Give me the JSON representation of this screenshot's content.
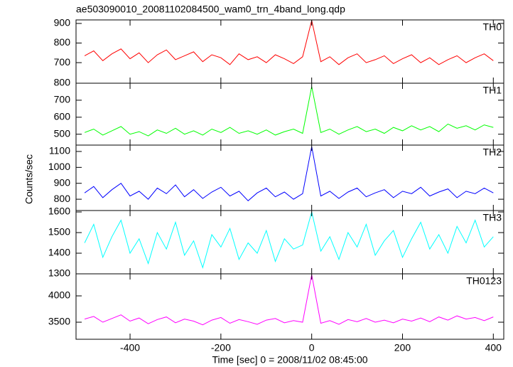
{
  "chart_data": {
    "type": "line",
    "title": "ae503090010_20081102084500_wam0_trn_4band_long.qdp",
    "xlabel": "Time [sec] 0 = 2008/11/02 08:45:00",
    "ylabel": "Counts/sec",
    "x": [
      -500,
      -480,
      -460,
      -440,
      -420,
      -400,
      -380,
      -360,
      -340,
      -320,
      -300,
      -280,
      -260,
      -240,
      -220,
      -200,
      -180,
      -160,
      -140,
      -120,
      -100,
      -80,
      -60,
      -40,
      -20,
      0,
      20,
      40,
      60,
      80,
      100,
      120,
      140,
      160,
      180,
      200,
      220,
      240,
      260,
      280,
      300,
      320,
      340,
      360,
      380,
      400
    ],
    "xlim": [
      -519,
      423
    ],
    "xticks": [
      -400,
      -200,
      0,
      200,
      400
    ],
    "series": [
      {
        "name": "TH0",
        "color": "#ff0000",
        "ylim": [
          595,
          918
        ],
        "yticks": [
          700,
          800,
          900
        ],
        "values": [
          735,
          760,
          710,
          745,
          770,
          720,
          750,
          700,
          740,
          765,
          715,
          735,
          755,
          705,
          740,
          725,
          690,
          745,
          715,
          730,
          700,
          740,
          720,
          695,
          730,
          915,
          705,
          730,
          690,
          725,
          745,
          700,
          715,
          735,
          695,
          720,
          740,
          700,
          725,
          690,
          715,
          735,
          700,
          725,
          745,
          710
        ]
      },
      {
        "name": "TH1",
        "color": "#00ff00",
        "ylim": [
          436,
          800
        ],
        "yticks": [
          500,
          600,
          700,
          800
        ],
        "values": [
          510,
          530,
          495,
          520,
          545,
          500,
          515,
          490,
          525,
          505,
          535,
          500,
          520,
          495,
          530,
          510,
          540,
          505,
          520,
          500,
          525,
          495,
          515,
          530,
          505,
          780,
          510,
          530,
          500,
          525,
          545,
          515,
          530,
          505,
          540,
          520,
          550,
          525,
          545,
          515,
          560,
          535,
          550,
          525,
          555,
          540
        ]
      },
      {
        "name": "TH2",
        "color": "#0000ff",
        "ylim": [
          729,
          1140
        ],
        "yticks": [
          800,
          900,
          1000,
          1100
        ],
        "values": [
          840,
          880,
          810,
          860,
          900,
          820,
          850,
          800,
          870,
          835,
          890,
          815,
          860,
          805,
          845,
          875,
          820,
          850,
          790,
          840,
          870,
          815,
          845,
          800,
          835,
          1130,
          820,
          850,
          805,
          845,
          870,
          815,
          840,
          860,
          810,
          850,
          835,
          875,
          820,
          845,
          865,
          810,
          850,
          835,
          870,
          840
        ]
      },
      {
        "name": "TH3",
        "color": "#00ffff",
        "ylim": [
          1300,
          1607
        ],
        "yticks": [
          1300,
          1400,
          1500,
          1600
        ],
        "values": [
          1450,
          1540,
          1380,
          1480,
          1560,
          1400,
          1470,
          1350,
          1500,
          1420,
          1550,
          1390,
          1460,
          1330,
          1490,
          1430,
          1520,
          1370,
          1450,
          1400,
          1510,
          1360,
          1470,
          1420,
          1440,
          1600,
          1410,
          1480,
          1370,
          1500,
          1430,
          1540,
          1390,
          1460,
          1510,
          1380,
          1470,
          1550,
          1420,
          1490,
          1400,
          1530,
          1450,
          1560,
          1430,
          1480
        ]
      },
      {
        "name": "TH0123",
        "color": "#ff00ff",
        "ylim": [
          3176,
          4419
        ],
        "yticks": [
          3500,
          4000
        ],
        "values": [
          3560,
          3610,
          3500,
          3570,
          3640,
          3520,
          3580,
          3470,
          3550,
          3600,
          3490,
          3560,
          3520,
          3450,
          3540,
          3590,
          3480,
          3550,
          3510,
          3460,
          3540,
          3570,
          3490,
          3530,
          3500,
          4400,
          3480,
          3530,
          3460,
          3550,
          3510,
          3570,
          3500,
          3540,
          3490,
          3560,
          3520,
          3580,
          3510,
          3600,
          3540,
          3620,
          3560,
          3590,
          3530,
          3600
        ]
      }
    ]
  }
}
